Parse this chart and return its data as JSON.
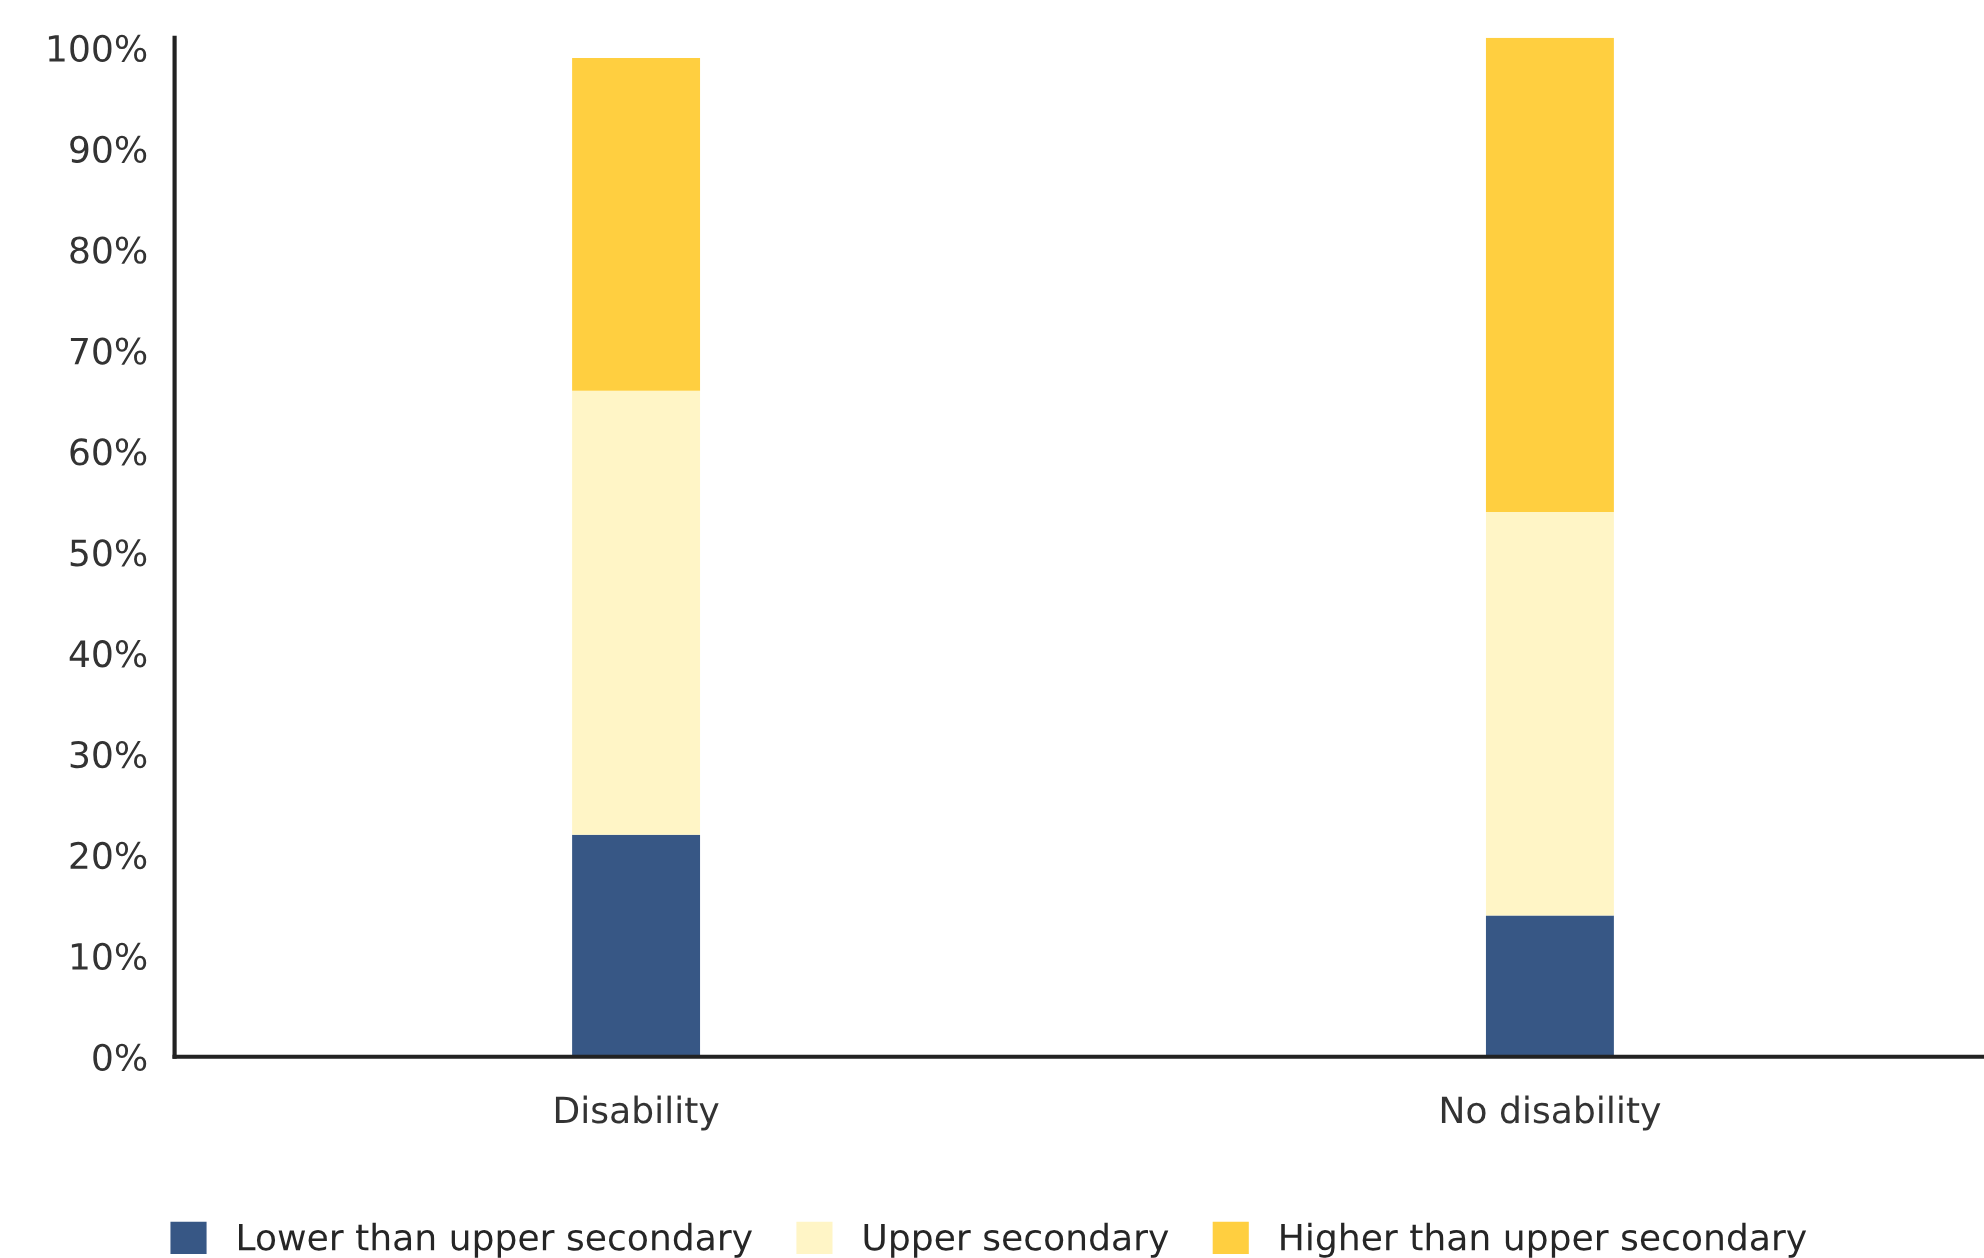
{
  "chart_data": {
    "type": "bar",
    "stacked": true,
    "categories": [
      "Disability",
      "No disability"
    ],
    "series": [
      {
        "name": "Lower than upper secondary",
        "color": "#375785",
        "values": [
          22,
          14
        ]
      },
      {
        "name": "Upper secondary",
        "color": "#fff5c6",
        "values": [
          44,
          40
        ]
      },
      {
        "name": "Higher than upper secondary",
        "color": "#ffcf40",
        "values": [
          33,
          47
        ]
      }
    ],
    "ylim": [
      0,
      101
    ],
    "yticks": [
      {
        "value": 0,
        "label": "0%"
      },
      {
        "value": 10,
        "label": "10%"
      },
      {
        "value": 20,
        "label": "20%"
      },
      {
        "value": 30,
        "label": "30%"
      },
      {
        "value": 40,
        "label": "40%"
      },
      {
        "value": 50,
        "label": "50%"
      },
      {
        "value": 60,
        "label": "60%"
      },
      {
        "value": 70,
        "label": "70%"
      },
      {
        "value": 80,
        "label": "80%"
      },
      {
        "value": 90,
        "label": "90%"
      },
      {
        "value": 100,
        "label": "100%"
      }
    ],
    "grid": false,
    "legend": "bottom"
  }
}
